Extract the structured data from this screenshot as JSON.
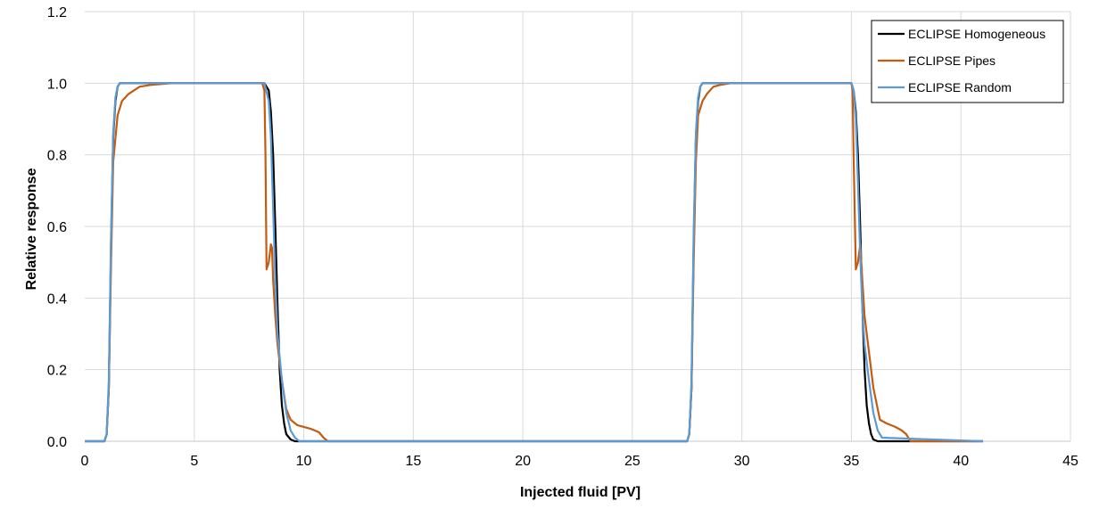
{
  "chart_data": {
    "type": "line",
    "xlabel": "Injected fluid [PV]",
    "ylabel": "Relative response",
    "xlim": [
      0,
      45
    ],
    "ylim": [
      0,
      1.2
    ],
    "x_ticks": [
      "0",
      "5",
      "10",
      "15",
      "20",
      "25",
      "30",
      "35",
      "40",
      "45"
    ],
    "y_ticks": [
      "0.0",
      "0.2",
      "0.4",
      "0.6",
      "0.8",
      "1.0",
      "1.2"
    ],
    "grid": true,
    "legend_position": "top-right",
    "series": [
      {
        "name": "ECLIPSE Homogeneous",
        "color": "#000000",
        "x": [
          0,
          0.9,
          1.0,
          1.1,
          1.2,
          1.3,
          1.4,
          1.5,
          1.6,
          1.8,
          2.0,
          8.0,
          8.2,
          8.4,
          8.5,
          8.6,
          8.7,
          8.8,
          8.9,
          9.0,
          9.1,
          9.2,
          9.4,
          9.6,
          27.5,
          27.6,
          27.7,
          27.8,
          27.9,
          28.0,
          28.1,
          28.2,
          28.4,
          28.6,
          35.0,
          35.1,
          35.2,
          35.3,
          35.4,
          35.5,
          35.6,
          35.7,
          35.8,
          35.9,
          36.0,
          36.2,
          41.0
        ],
        "y": [
          0,
          0,
          0.02,
          0.15,
          0.55,
          0.85,
          0.95,
          0.99,
          1.0,
          1.0,
          1.0,
          1.0,
          1.0,
          0.98,
          0.92,
          0.8,
          0.6,
          0.38,
          0.2,
          0.1,
          0.05,
          0.02,
          0.005,
          0,
          0,
          0.02,
          0.15,
          0.55,
          0.85,
          0.95,
          0.99,
          1.0,
          1.0,
          1.0,
          1.0,
          0.98,
          0.92,
          0.8,
          0.6,
          0.38,
          0.2,
          0.1,
          0.05,
          0.02,
          0.005,
          0,
          0
        ]
      },
      {
        "name": "ECLIPSE Pipes",
        "color": "#C55A11",
        "x": [
          0,
          0.9,
          1.0,
          1.1,
          1.2,
          1.3,
          1.5,
          1.7,
          2.0,
          2.5,
          3.0,
          4.0,
          8.1,
          8.2,
          8.25,
          8.3,
          8.4,
          8.5,
          8.55,
          8.6,
          8.7,
          8.8,
          9.0,
          9.2,
          9.4,
          9.7,
          10.0,
          10.3,
          10.5,
          10.7,
          10.9,
          11.1,
          11.3,
          27.5,
          27.6,
          27.7,
          27.8,
          27.9,
          28.0,
          28.2,
          28.4,
          28.7,
          29.0,
          29.5,
          30.0,
          30.5,
          35.0,
          35.05,
          35.1,
          35.2,
          35.3,
          35.4,
          35.5,
          35.6,
          35.8,
          36.0,
          36.3,
          36.6,
          37.0,
          37.3,
          37.5,
          37.6,
          37.7,
          38.0,
          41.0
        ],
        "y": [
          0,
          0,
          0.02,
          0.15,
          0.5,
          0.78,
          0.91,
          0.95,
          0.97,
          0.99,
          0.995,
          1.0,
          1.0,
          0.98,
          0.8,
          0.48,
          0.5,
          0.55,
          0.54,
          0.45,
          0.35,
          0.27,
          0.17,
          0.09,
          0.06,
          0.045,
          0.04,
          0.035,
          0.03,
          0.025,
          0.01,
          0,
          0,
          0,
          0.02,
          0.15,
          0.5,
          0.78,
          0.91,
          0.95,
          0.97,
          0.99,
          0.995,
          1.0,
          1.0,
          1.0,
          1.0,
          0.98,
          0.8,
          0.48,
          0.5,
          0.55,
          0.45,
          0.35,
          0.25,
          0.15,
          0.06,
          0.05,
          0.04,
          0.03,
          0.02,
          0.01,
          0,
          0,
          0
        ]
      },
      {
        "name": "ECLIPSE Random",
        "color": "#5B9BD5",
        "x": [
          0,
          0.9,
          1.0,
          1.1,
          1.2,
          1.3,
          1.4,
          1.5,
          1.6,
          1.8,
          2.0,
          8.0,
          8.2,
          8.4,
          8.5,
          8.6,
          8.7,
          8.8,
          9.0,
          9.2,
          9.4,
          9.6,
          9.8,
          27.5,
          27.6,
          27.7,
          27.8,
          27.9,
          28.0,
          28.1,
          28.2,
          28.4,
          28.6,
          35.0,
          35.1,
          35.2,
          35.3,
          35.4,
          35.5,
          35.6,
          35.8,
          36.0,
          36.2,
          36.4,
          41.0
        ],
        "y": [
          0,
          0,
          0.02,
          0.17,
          0.58,
          0.86,
          0.96,
          0.99,
          1.0,
          1.0,
          1.0,
          1.0,
          1.0,
          0.95,
          0.85,
          0.65,
          0.45,
          0.3,
          0.17,
          0.08,
          0.03,
          0.01,
          0,
          0,
          0.02,
          0.17,
          0.58,
          0.86,
          0.96,
          0.99,
          1.0,
          1.0,
          1.0,
          1.0,
          0.98,
          0.9,
          0.72,
          0.52,
          0.37,
          0.27,
          0.17,
          0.08,
          0.03,
          0.01,
          0
        ]
      }
    ]
  }
}
